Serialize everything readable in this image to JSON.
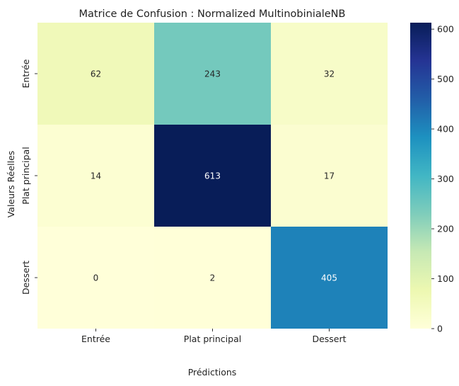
{
  "chart_data": {
    "type": "heatmap",
    "title": "Matrice de Confusion : Normalized MultinobinialeNB",
    "xlabel": "Prédictions",
    "ylabel": "Valeurs Réelles",
    "x_categories": [
      "Entrée",
      "Plat principal",
      "Dessert"
    ],
    "y_categories": [
      "Entrée",
      "Plat principal",
      "Dessert"
    ],
    "values": [
      [
        62,
        243,
        32
      ],
      [
        14,
        613,
        17
      ],
      [
        0,
        2,
        405
      ]
    ],
    "colormap": "YlGnBu",
    "color_range": [
      0,
      613
    ],
    "colorbar_ticks": [
      0,
      100,
      200,
      300,
      400,
      500,
      600
    ]
  }
}
